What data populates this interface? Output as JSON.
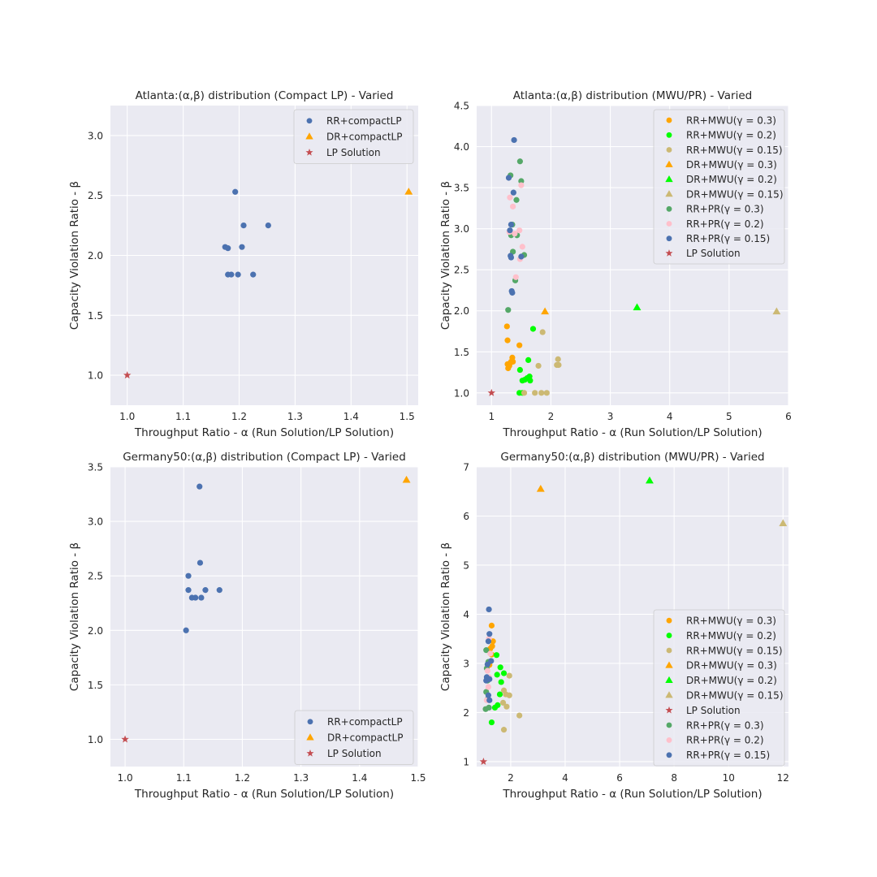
{
  "colors": {
    "background": "#eaeaf2",
    "grid": "#ffffff",
    "blue": "#4c72b0",
    "orange": "#ffa500",
    "green": "#00ff00",
    "tan": "#ccb974",
    "seagreen": "#55a868",
    "pink": "#ffc0cb",
    "red": "#c44e52"
  },
  "chart_data": [
    {
      "type": "scatter",
      "title": "Atlanta:(α,β) distribution (Compact LP) - Varied",
      "xlabel": "Throughput Ratio - α (Run Solution/LP Solution)",
      "ylabel": "Capacity Violation Ratio - β",
      "xlim": [
        0.97,
        1.52
      ],
      "ylim": [
        0.75,
        3.25
      ],
      "xticks": [
        1.0,
        1.1,
        1.2,
        1.3,
        1.4,
        1.5
      ],
      "xtick_labels": [
        "1.0",
        "1.1",
        "1.2",
        "1.3",
        "1.4",
        "1.5"
      ],
      "yticks": [
        1.0,
        1.5,
        2.0,
        2.5,
        3.0
      ],
      "ytick_labels": [
        "1.0",
        "1.5",
        "2.0",
        "2.5",
        "3.0"
      ],
      "legend_position": "top-right",
      "series": [
        {
          "name": "RR+compactLP",
          "marker": "circle",
          "color": "#4c72b0",
          "points": [
            [
              1.193,
              2.53
            ],
            [
              1.175,
              2.07
            ],
            [
              1.18,
              2.06
            ],
            [
              1.205,
              2.07
            ],
            [
              1.208,
              2.25
            ],
            [
              1.252,
              2.25
            ],
            [
              1.18,
              1.84
            ],
            [
              1.186,
              1.84
            ],
            [
              1.198,
              1.84
            ],
            [
              1.225,
              1.84
            ]
          ]
        },
        {
          "name": "DR+compactLP",
          "marker": "triangle",
          "color": "#ffa500",
          "points": [
            [
              1.503,
              2.53
            ]
          ]
        },
        {
          "name": "LP Solution",
          "marker": "star",
          "color": "#c44e52",
          "points": [
            [
              1.0,
              1.0
            ]
          ]
        }
      ]
    },
    {
      "type": "scatter",
      "title": "Atlanta:(α,β) distribution (MWU/PR) - Varied",
      "xlabel": "Throughput Ratio - α (Run Solution/LP Solution)",
      "ylabel": "Capacity Violation Ratio - β",
      "xlim": [
        0.75,
        6.0
      ],
      "ylim": [
        0.85,
        4.5
      ],
      "xticks": [
        1,
        2,
        3,
        4,
        5,
        6
      ],
      "xtick_labels": [
        "1",
        "2",
        "3",
        "4",
        "5",
        "6"
      ],
      "yticks": [
        1.0,
        1.5,
        2.0,
        2.5,
        3.0,
        3.5,
        4.0,
        4.5
      ],
      "ytick_labels": [
        "1.0",
        "1.5",
        "2.0",
        "2.5",
        "3.0",
        "3.5",
        "4.0",
        "4.5"
      ],
      "legend_position": "top-right",
      "series": [
        {
          "name": "RR+MWU(γ = 0.3)",
          "marker": "circle",
          "color": "#ffa500",
          "points": [
            [
              1.26,
              1.81
            ],
            [
              1.27,
              1.64
            ],
            [
              1.27,
              1.35
            ],
            [
              1.28,
              1.3
            ],
            [
              1.3,
              1.33
            ],
            [
              1.31,
              1.36
            ],
            [
              1.33,
              1.38
            ],
            [
              1.35,
              1.43
            ],
            [
              1.36,
              1.38
            ],
            [
              1.47,
              1.58
            ]
          ]
        },
        {
          "name": "RR+MWU(γ = 0.2)",
          "marker": "circle",
          "color": "#00ff00",
          "points": [
            [
              1.47,
              1.0
            ],
            [
              1.52,
              1.15
            ],
            [
              1.56,
              1.16
            ],
            [
              1.62,
              1.4
            ],
            [
              1.64,
              1.2
            ],
            [
              1.65,
              1.15
            ],
            [
              1.7,
              1.78
            ],
            [
              1.48,
              1.28
            ],
            [
              1.52,
              1.0
            ],
            [
              1.6,
              1.18
            ]
          ]
        },
        {
          "name": "RR+MWU(γ = 0.15)",
          "marker": "circle",
          "color": "#ccb974",
          "points": [
            [
              1.55,
              1.0
            ],
            [
              1.73,
              1.0
            ],
            [
              1.79,
              1.33
            ],
            [
              1.84,
              1.0
            ],
            [
              1.86,
              1.74
            ],
            [
              1.93,
              1.0
            ],
            [
              2.1,
              1.34
            ],
            [
              2.12,
              1.41
            ],
            [
              2.13,
              1.34
            ]
          ]
        },
        {
          "name": "DR+MWU(γ = 0.3)",
          "marker": "triangle",
          "color": "#ffa500",
          "points": [
            [
              1.9,
              1.99
            ]
          ]
        },
        {
          "name": "DR+MWU(γ = 0.2)",
          "marker": "triangle",
          "color": "#00ff00",
          "points": [
            [
              3.45,
              2.04
            ]
          ]
        },
        {
          "name": "DR+MWU(γ = 0.15)",
          "marker": "triangle",
          "color": "#ccb974",
          "points": [
            [
              5.8,
              1.99
            ]
          ]
        },
        {
          "name": "RR+PR(γ = 0.3)",
          "marker": "circle",
          "color": "#55a868",
          "points": [
            [
              1.32,
              3.65
            ],
            [
              1.48,
              3.82
            ],
            [
              1.5,
              3.58
            ],
            [
              1.42,
              3.35
            ],
            [
              1.35,
              3.05
            ],
            [
              1.33,
              2.92
            ],
            [
              1.43,
              2.92
            ],
            [
              1.36,
              2.72
            ],
            [
              1.55,
              2.68
            ],
            [
              1.4,
              2.37
            ],
            [
              1.28,
              2.01
            ]
          ]
        },
        {
          "name": "RR+PR(γ = 0.2)",
          "marker": "circle",
          "color": "#ffc0cb",
          "points": [
            [
              1.31,
              3.38
            ],
            [
              1.36,
              3.27
            ],
            [
              1.5,
              3.53
            ],
            [
              1.47,
              2.98
            ],
            [
              1.39,
              2.94
            ],
            [
              1.52,
              2.78
            ],
            [
              1.48,
              2.63
            ],
            [
              1.41,
              2.41
            ],
            [
              1.3,
              2.96
            ]
          ]
        },
        {
          "name": "RR+PR(γ = 0.15)",
          "marker": "circle",
          "color": "#4c72b0",
          "points": [
            [
              1.38,
              4.08
            ],
            [
              1.29,
              3.62
            ],
            [
              1.37,
              3.44
            ],
            [
              1.33,
              3.05
            ],
            [
              1.31,
              2.98
            ],
            [
              1.32,
              2.67
            ],
            [
              1.33,
              2.65
            ],
            [
              1.5,
              2.66
            ],
            [
              1.34,
              2.24
            ],
            [
              1.35,
              2.22
            ]
          ]
        },
        {
          "name": "LP Solution",
          "marker": "star",
          "color": "#c44e52",
          "points": [
            [
              1.0,
              1.0
            ]
          ]
        }
      ]
    },
    {
      "type": "scatter",
      "title": "Germany50:(α,β) distribution (Compact LP) - Varied",
      "xlabel": "Throughput Ratio - α (Run Solution/LP Solution)",
      "ylabel": "Capacity Violation Ratio - β",
      "xlim": [
        0.975,
        1.5
      ],
      "ylim": [
        0.75,
        3.5
      ],
      "xticks": [
        1.0,
        1.1,
        1.2,
        1.3,
        1.4,
        1.5
      ],
      "xtick_labels": [
        "1.0",
        "1.1",
        "1.2",
        "1.3",
        "1.4",
        "1.5"
      ],
      "yticks": [
        1.0,
        1.5,
        2.0,
        2.5,
        3.0,
        3.5
      ],
      "ytick_labels": [
        "1.0",
        "1.5",
        "2.0",
        "2.5",
        "3.0",
        "3.5"
      ],
      "legend_position": "bottom-right",
      "series": [
        {
          "name": "RR+compactLP",
          "marker": "circle",
          "color": "#4c72b0",
          "points": [
            [
              1.127,
              3.32
            ],
            [
              1.128,
              2.62
            ],
            [
              1.108,
              2.5
            ],
            [
              1.108,
              2.37
            ],
            [
              1.137,
              2.37
            ],
            [
              1.161,
              2.37
            ],
            [
              1.114,
              2.3
            ],
            [
              1.12,
              2.3
            ],
            [
              1.13,
              2.3
            ],
            [
              1.104,
              2.0
            ]
          ]
        },
        {
          "name": "DR+compactLP",
          "marker": "triangle",
          "color": "#ffa500",
          "points": [
            [
              1.48,
              3.38
            ]
          ]
        },
        {
          "name": "LP Solution",
          "marker": "star",
          "color": "#c44e52",
          "points": [
            [
              1.0,
              1.0
            ]
          ]
        }
      ]
    },
    {
      "type": "scatter",
      "title": "Germany50:(α,β) distribution (MWU/PR) - Varied",
      "xlabel": "Throughput Ratio - α (Run Solution/LP Solution)",
      "ylabel": "Capacity Violation Ratio - β",
      "xlim": [
        0.75,
        12.2
      ],
      "ylim": [
        0.9,
        7.0
      ],
      "xticks": [
        2,
        4,
        6,
        8,
        10,
        12
      ],
      "xtick_labels": [
        "2",
        "4",
        "6",
        "8",
        "10",
        "12"
      ],
      "yticks": [
        1,
        2,
        3,
        4,
        5,
        6,
        7
      ],
      "ytick_labels": [
        "1",
        "2",
        "3",
        "4",
        "5",
        "6",
        "7"
      ],
      "legend_position": "bottom-right",
      "series": [
        {
          "name": "RR+MWU(γ = 0.3)",
          "marker": "circle",
          "color": "#ffa500",
          "points": [
            [
              1.3,
              3.77
            ],
            [
              1.35,
              3.45
            ],
            [
              1.32,
              3.35
            ],
            [
              1.25,
              3.3
            ],
            [
              1.3,
              3.18
            ],
            [
              1.22,
              2.97
            ]
          ]
        },
        {
          "name": "RR+MWU(γ = 0.2)",
          "marker": "circle",
          "color": "#00ff00",
          "points": [
            [
              1.48,
              3.17
            ],
            [
              1.62,
              2.92
            ],
            [
              1.75,
              2.8
            ],
            [
              1.5,
              2.77
            ],
            [
              1.65,
              2.62
            ],
            [
              1.6,
              2.37
            ],
            [
              1.52,
              2.15
            ],
            [
              1.42,
              2.1
            ],
            [
              1.3,
              1.8
            ]
          ]
        },
        {
          "name": "RR+MWU(γ = 0.15)",
          "marker": "circle",
          "color": "#ccb974",
          "points": [
            [
              1.95,
              2.75
            ],
            [
              1.75,
              2.45
            ],
            [
              1.82,
              2.37
            ],
            [
              1.95,
              2.35
            ],
            [
              1.72,
              2.2
            ],
            [
              1.85,
              2.12
            ],
            [
              2.32,
              1.94
            ],
            [
              1.75,
              1.65
            ]
          ]
        },
        {
          "name": "DR+MWU(γ = 0.3)",
          "marker": "triangle",
          "color": "#ffa500",
          "points": [
            [
              3.1,
              6.55
            ]
          ]
        },
        {
          "name": "DR+MWU(γ = 0.2)",
          "marker": "triangle",
          "color": "#00ff00",
          "points": [
            [
              7.1,
              6.72
            ]
          ]
        },
        {
          "name": "DR+MWU(γ = 0.15)",
          "marker": "triangle",
          "color": "#ccb974",
          "points": [
            [
              12.0,
              5.85
            ]
          ]
        },
        {
          "name": "LP Solution",
          "marker": "star",
          "color": "#c44e52",
          "points": [
            [
              1.0,
              1.0
            ]
          ]
        },
        {
          "name": "RR+PR(γ = 0.3)",
          "marker": "circle",
          "color": "#55a868",
          "points": [
            [
              1.1,
              3.27
            ],
            [
              1.18,
              3.03
            ],
            [
              1.12,
              2.9
            ],
            [
              1.15,
              2.65
            ],
            [
              1.1,
              2.42
            ],
            [
              1.15,
              2.27
            ],
            [
              1.2,
              2.1
            ],
            [
              1.08,
              2.07
            ]
          ]
        },
        {
          "name": "RR+PR(γ = 0.2)",
          "marker": "circle",
          "color": "#ffc0cb",
          "points": [
            [
              1.2,
              3.5
            ],
            [
              1.25,
              3.2
            ],
            [
              1.15,
              2.85
            ],
            [
              1.2,
              2.72
            ],
            [
              1.18,
              2.52
            ],
            [
              1.12,
              2.25
            ]
          ]
        },
        {
          "name": "RR+PR(γ = 0.15)",
          "marker": "circle",
          "color": "#4c72b0",
          "points": [
            [
              1.2,
              4.1
            ],
            [
              1.22,
              3.6
            ],
            [
              1.18,
              3.45
            ],
            [
              1.28,
              3.05
            ],
            [
              1.15,
              2.98
            ],
            [
              1.12,
              2.72
            ],
            [
              1.22,
              2.68
            ],
            [
              1.1,
              2.65
            ],
            [
              1.18,
              2.35
            ],
            [
              1.22,
              2.25
            ]
          ]
        }
      ]
    }
  ]
}
